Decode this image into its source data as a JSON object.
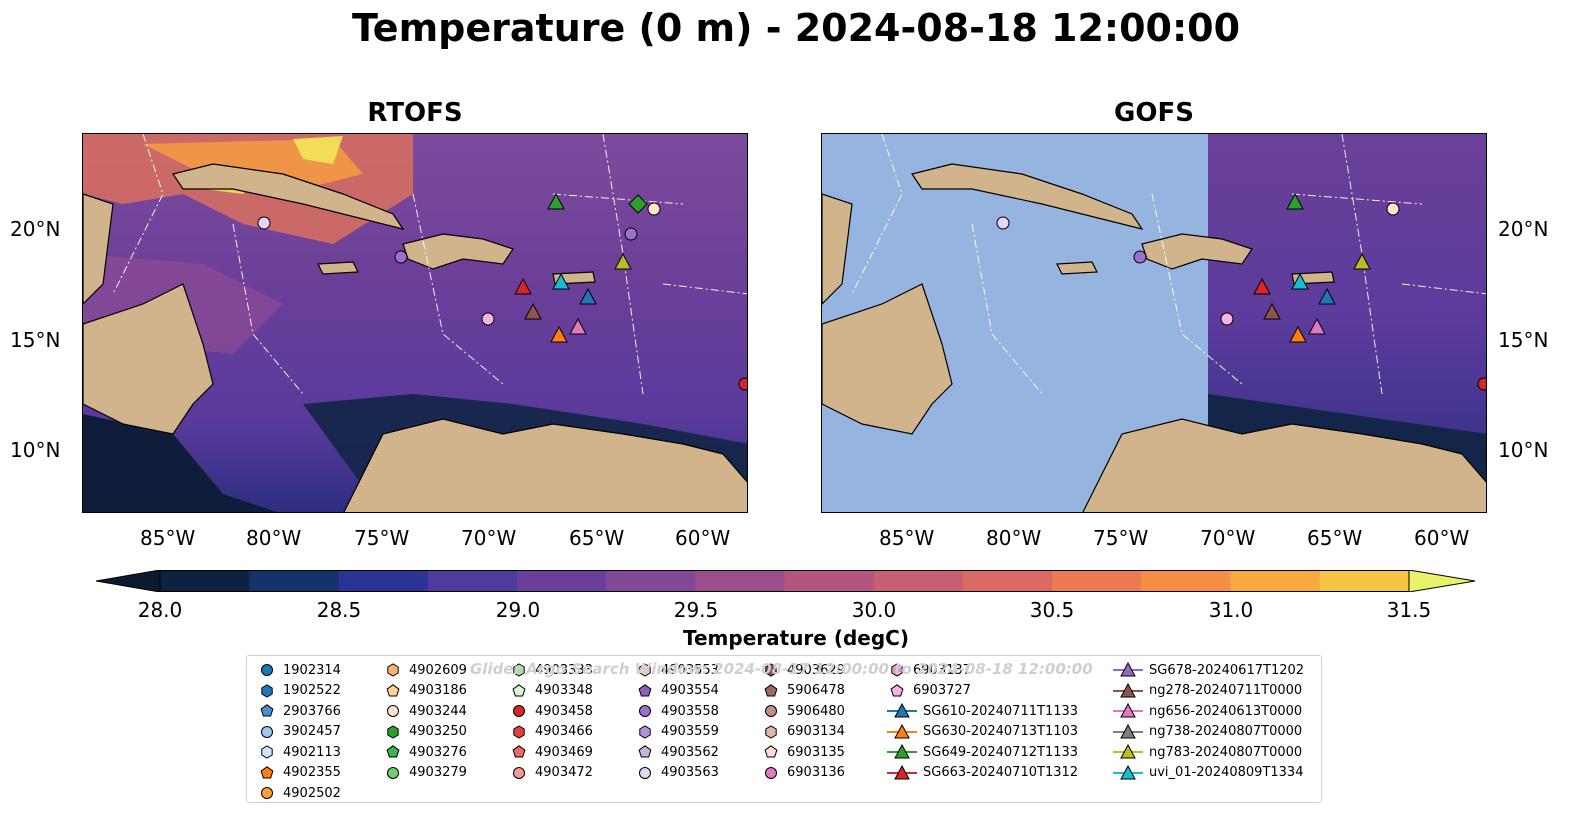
{
  "title": "Temperature (0 m) - 2024-08-18 12:00:00",
  "panels": [
    {
      "id": "rtofs",
      "title": "RTOFS"
    },
    {
      "id": "gofs",
      "title": "GOFS"
    }
  ],
  "lon_ticks": [
    "85°W",
    "80°W",
    "75°W",
    "70°W",
    "65°W",
    "60°W"
  ],
  "lat_ticks": [
    "20°N",
    "15°N",
    "10°N"
  ],
  "colorbar": {
    "label": "Temperature (degC)",
    "ticks": [
      "28.0",
      "28.5",
      "29.0",
      "29.5",
      "30.0",
      "30.5",
      "31.0",
      "31.5"
    ],
    "min": 28.0,
    "max": 31.5,
    "colors": [
      "#0d2240",
      "#14336b",
      "#2b3396",
      "#4f3aa0",
      "#6a3f9c",
      "#824795",
      "#9a4f8b",
      "#b2567f",
      "#c95f73",
      "#dc6a64",
      "#ec7a52",
      "#f58f45",
      "#f8a93f",
      "#f6c545"
    ],
    "under_color": "#0b1a2e",
    "over_color": "#eaf26a"
  },
  "watermark": "Glider Argo Search Window: 2024-08-17 12:00:00 to 2024-08-18 12:00:00",
  "legend": {
    "columns": [
      [
        {
          "label": "1902314",
          "marker": "circle",
          "color": "#1f77b4"
        },
        {
          "label": "1902522",
          "marker": "hexagon",
          "color": "#1f77b4"
        },
        {
          "label": "2903766",
          "marker": "pentagon",
          "color": "#4a8fd0"
        },
        {
          "label": "3902457",
          "marker": "circle",
          "color": "#9ec9ee"
        },
        {
          "label": "4902113",
          "marker": "hexagon",
          "color": "#cfe3f7"
        },
        {
          "label": "4902355",
          "marker": "pentagon",
          "color": "#ff7f0e"
        },
        {
          "label": "4902502",
          "marker": "circle",
          "color": "#ff9f3a"
        }
      ],
      [
        {
          "label": "4902609",
          "marker": "hexagon",
          "color": "#ffb26b"
        },
        {
          "label": "4903186",
          "marker": "pentagon",
          "color": "#ffcf9a"
        },
        {
          "label": "4903244",
          "marker": "circle",
          "color": "#ffe6c8"
        },
        {
          "label": "4903250",
          "marker": "hexagon",
          "color": "#2ca02c"
        },
        {
          "label": "4903276",
          "marker": "pentagon",
          "color": "#3cb44b"
        },
        {
          "label": "4903279",
          "marker": "circle",
          "color": "#6fcf6f"
        }
      ],
      [
        {
          "label": "4903333",
          "marker": "hexagon",
          "color": "#a7e3a0"
        },
        {
          "label": "4903348",
          "marker": "pentagon",
          "color": "#d7f5cf"
        },
        {
          "label": "4903458",
          "marker": "circle",
          "color": "#d62728"
        },
        {
          "label": "4903466",
          "marker": "hexagon",
          "color": "#e0413f"
        },
        {
          "label": "4903469",
          "marker": "pentagon",
          "color": "#ea6a6a"
        },
        {
          "label": "4903472",
          "marker": "circle",
          "color": "#f29a98"
        }
      ],
      [
        {
          "label": "4903553",
          "marker": "hexagon",
          "color": "#f9c9c7"
        },
        {
          "label": "4903554",
          "marker": "pentagon",
          "color": "#8c5fbf"
        },
        {
          "label": "4903558",
          "marker": "circle",
          "color": "#9a72c9"
        },
        {
          "label": "4903559",
          "marker": "hexagon",
          "color": "#b192d8"
        },
        {
          "label": "4903562",
          "marker": "pentagon",
          "color": "#c9b3e6"
        },
        {
          "label": "4903563",
          "marker": "circle",
          "color": "#e4d6f4"
        }
      ],
      [
        {
          "label": "4903629",
          "marker": "hexagon",
          "color": "#8c564b"
        },
        {
          "label": "5906478",
          "marker": "pentagon",
          "color": "#a06a5c"
        },
        {
          "label": "5906480",
          "marker": "circle",
          "color": "#c08e82"
        },
        {
          "label": "6903134",
          "marker": "hexagon",
          "color": "#e0b5aa"
        },
        {
          "label": "6903135",
          "marker": "pentagon",
          "color": "#f6dcd4"
        },
        {
          "label": "6903136",
          "marker": "circle",
          "color": "#e377c2"
        }
      ],
      [
        {
          "label": "6903137",
          "marker": "hexagon",
          "color": "#ea8fd0"
        },
        {
          "label": "6903727",
          "marker": "pentagon",
          "color": "#f3b4e1"
        },
        {
          "label": "SG610-20240711T1133",
          "marker": "triangle",
          "color": "#1f77b4",
          "line": true
        },
        {
          "label": "SG630-20240713T1103",
          "marker": "triangle",
          "color": "#ff7f0e",
          "line": true
        },
        {
          "label": "SG649-20240712T1133",
          "marker": "triangle",
          "color": "#2ca02c",
          "line": true
        },
        {
          "label": "SG663-20240710T1312",
          "marker": "triangle",
          "color": "#d62728",
          "line": true
        }
      ],
      [
        {
          "label": "SG678-20240617T1202",
          "marker": "triangle",
          "color": "#9467bd",
          "line": true
        },
        {
          "label": "ng278-20240711T0000",
          "marker": "triangle",
          "color": "#8c564b",
          "line": true
        },
        {
          "label": "ng656-20240613T0000",
          "marker": "triangle",
          "color": "#e377c2",
          "line": true
        },
        {
          "label": "ng738-20240807T0000",
          "marker": "triangle",
          "color": "#7f7f7f",
          "line": true
        },
        {
          "label": "ng783-20240807T0000",
          "marker": "triangle",
          "color": "#bcbd22",
          "line": true
        },
        {
          "label": "uvi_01-20240809T1334",
          "marker": "triangle",
          "color": "#17becf",
          "line": true
        }
      ]
    ]
  }
}
